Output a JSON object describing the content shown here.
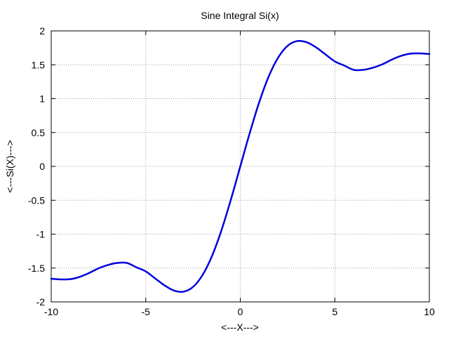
{
  "chart_data": {
    "type": "line",
    "title": "Sine Integral Si(x)",
    "xlabel": "<---X--->",
    "ylabel": "<---Si(X)--->",
    "xlim": [
      -10,
      10
    ],
    "ylim": [
      -2,
      2
    ],
    "grid": true,
    "x_ticks": [
      "-10",
      "-5",
      "0",
      "5",
      "10"
    ],
    "y_ticks": [
      "2",
      "1.5",
      "1",
      "0.5",
      "0",
      "-0.5",
      "-1",
      "-1.5",
      "-2"
    ],
    "series": [
      {
        "color": "#0000dd",
        "x": [
          -10,
          -9.5,
          -9,
          -8.5,
          -8,
          -7.5,
          -7,
          -6.5,
          -6,
          -5.5,
          -5,
          -4.5,
          -4,
          -3.5,
          -3,
          -2.5,
          -2,
          -1.5,
          -1,
          -0.5,
          0,
          0.5,
          1,
          1.5,
          2,
          2.5,
          3,
          3.5,
          4,
          4.5,
          5,
          5.5,
          6,
          6.5,
          7,
          7.5,
          8,
          8.5,
          9,
          9.5,
          10
        ],
        "y": [
          -1.658,
          -1.668,
          -1.665,
          -1.631,
          -1.574,
          -1.505,
          -1.455,
          -1.425,
          -1.425,
          -1.488,
          -1.55,
          -1.654,
          -1.758,
          -1.833,
          -1.849,
          -1.779,
          -1.605,
          -1.325,
          -0.946,
          -0.493,
          0,
          0.493,
          0.946,
          1.325,
          1.605,
          1.779,
          1.849,
          1.833,
          1.758,
          1.654,
          1.55,
          1.488,
          1.425,
          1.425,
          1.455,
          1.505,
          1.574,
          1.631,
          1.665,
          1.668,
          1.658
        ]
      }
    ]
  }
}
